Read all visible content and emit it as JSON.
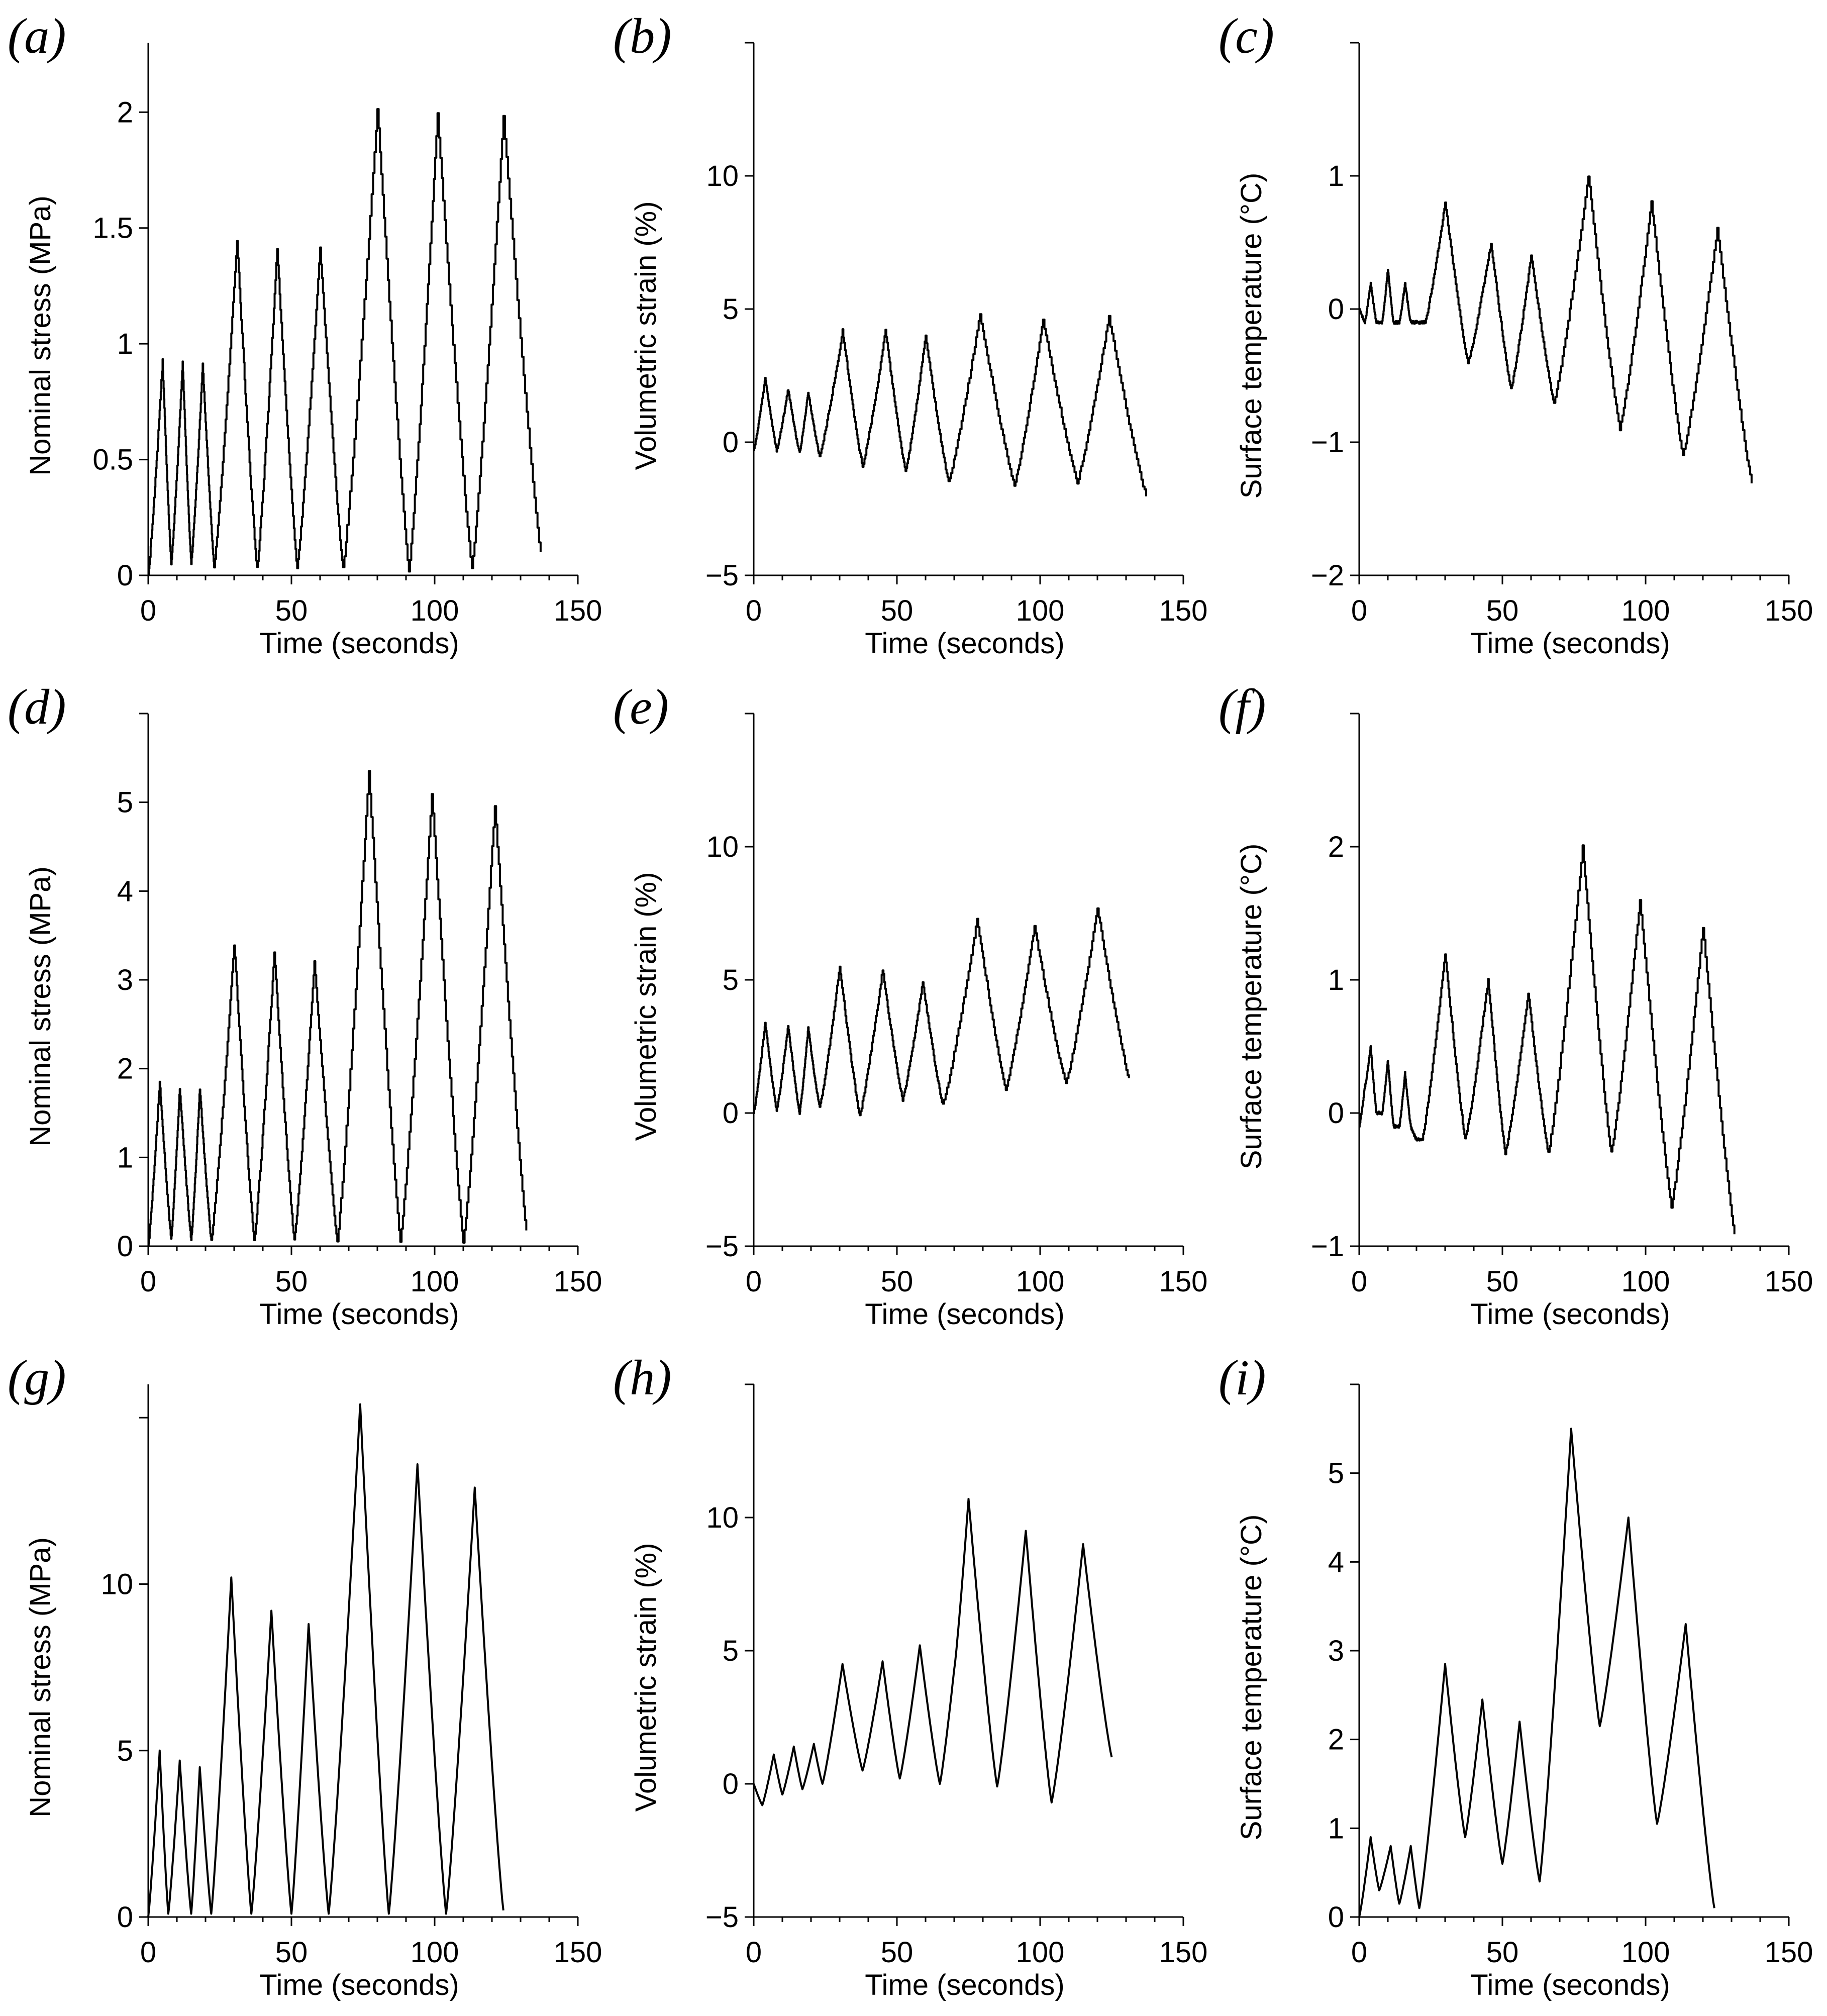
{
  "chart_data": [
    {
      "panel": "(a)",
      "type": "line",
      "xlabel": "Time (seconds)",
      "ylabel": "Nominal stress (MPa)",
      "xlim": [
        0,
        150
      ],
      "ylim": [
        0,
        2.3
      ],
      "xticks": [
        0,
        50,
        100,
        150
      ],
      "yticks": [
        0,
        0.5,
        1,
        1.5,
        2
      ],
      "ytick_labels": [
        "0",
        "0.5",
        "1",
        "1.5",
        "2"
      ],
      "steps": true,
      "x": [
        0,
        5,
        8,
        12,
        15,
        19,
        23,
        31,
        38,
        45,
        52,
        60,
        68,
        80,
        91,
        101,
        113,
        124,
        137
      ],
      "y": [
        0,
        0.93,
        0.05,
        0.92,
        0.05,
        0.91,
        0.04,
        1.44,
        0.03,
        1.41,
        0.03,
        1.41,
        0.03,
        2.02,
        0.02,
        1.99,
        0.03,
        1.98,
        0.1
      ]
    },
    {
      "panel": "(b)",
      "type": "line",
      "xlabel": "Time (seconds)",
      "ylabel": "Volumetric strain (%)",
      "xlim": [
        0,
        150
      ],
      "ylim": [
        -5,
        15
      ],
      "xticks": [
        0,
        50,
        100,
        150
      ],
      "yticks": [
        -5,
        0,
        5,
        10
      ],
      "ytick_labels": [
        "−5",
        "0",
        "5",
        "10"
      ],
      "steps": true,
      "x": [
        0,
        4,
        8,
        12,
        16,
        19,
        23,
        31,
        38,
        46,
        53,
        60,
        68,
        79,
        91,
        101,
        113,
        124,
        137
      ],
      "y": [
        -0.3,
        2.4,
        -0.3,
        2.0,
        -0.4,
        1.9,
        -0.5,
        4.2,
        -0.9,
        4.2,
        -1.1,
        4.0,
        -1.5,
        4.8,
        -1.6,
        4.6,
        -1.5,
        4.7,
        -2.0
      ]
    },
    {
      "panel": "(c)",
      "type": "line",
      "xlabel": "Time (seconds)",
      "ylabel": "Surface temperature (°C)",
      "xlim": [
        0,
        150
      ],
      "ylim": [
        -2,
        2
      ],
      "xticks": [
        0,
        50,
        100,
        150
      ],
      "yticks": [
        -2,
        -1,
        0,
        1
      ],
      "ytick_labels": [
        "−2",
        "−1",
        "0",
        "1"
      ],
      "steps": true,
      "x": [
        0,
        2,
        4,
        6,
        8,
        10,
        12,
        14,
        16,
        18,
        20,
        23,
        30,
        38,
        46,
        53,
        60,
        68,
        80,
        91,
        102,
        113,
        125,
        137
      ],
      "y": [
        0,
        -0.1,
        0.2,
        -0.1,
        -0.1,
        0.3,
        -0.1,
        -0.1,
        0.2,
        -0.1,
        -0.1,
        -0.1,
        0.8,
        -0.4,
        0.5,
        -0.6,
        0.4,
        -0.7,
        1.0,
        -0.9,
        0.8,
        -1.1,
        0.6,
        -1.3
      ]
    },
    {
      "panel": "(d)",
      "type": "line",
      "xlabel": "Time (seconds)",
      "ylabel": "Nominal stress (MPa)",
      "xlim": [
        0,
        150
      ],
      "ylim": [
        0,
        6
      ],
      "xticks": [
        0,
        50,
        100,
        150
      ],
      "yticks": [
        0,
        1,
        2,
        3,
        4,
        5
      ],
      "ytick_labels": [
        "0",
        "1",
        "2",
        "3",
        "4",
        "5"
      ],
      "steps": true,
      "x": [
        0,
        4,
        8,
        11,
        15,
        18,
        22,
        30,
        37,
        44,
        51,
        58,
        66,
        77,
        88,
        99,
        110,
        121,
        132
      ],
      "y": [
        0,
        1.85,
        0.08,
        1.78,
        0.07,
        1.78,
        0.06,
        3.4,
        0.07,
        3.3,
        0.06,
        3.2,
        0.06,
        5.35,
        0.06,
        5.1,
        0.05,
        4.97,
        0.18
      ]
    },
    {
      "panel": "(e)",
      "type": "line",
      "xlabel": "Time (seconds)",
      "ylabel": "Volumetric strain (%)",
      "xlim": [
        0,
        150
      ],
      "ylim": [
        -5,
        15
      ],
      "xticks": [
        0,
        50,
        100,
        150
      ],
      "yticks": [
        -5,
        0,
        5,
        10
      ],
      "ytick_labels": [
        "−5",
        "0",
        "5",
        "10"
      ],
      "steps": true,
      "x": [
        0,
        4,
        8,
        12,
        16,
        19,
        23,
        30,
        37,
        45,
        52,
        59,
        66,
        78,
        88,
        98,
        109,
        120,
        131
      ],
      "y": [
        0,
        3.4,
        0.1,
        3.3,
        0.0,
        3.2,
        0.2,
        5.5,
        -0.1,
        5.4,
        0.5,
        4.9,
        0.3,
        7.3,
        0.9,
        7.0,
        1.1,
        7.7,
        1.3
      ]
    },
    {
      "panel": "(f)",
      "type": "line",
      "xlabel": "Time (seconds)",
      "ylabel": "Surface temperature (°C)",
      "xlim": [
        0,
        150
      ],
      "ylim": [
        -1,
        3
      ],
      "xticks": [
        0,
        50,
        100,
        150
      ],
      "yticks": [
        -1,
        0,
        1,
        2
      ],
      "ytick_labels": [
        "−1",
        "0",
        "1",
        "2"
      ],
      "steps": true,
      "x": [
        0,
        2,
        4,
        6,
        8,
        10,
        12,
        14,
        16,
        18,
        20,
        22,
        30,
        37,
        45,
        51,
        59,
        66,
        78,
        88,
        98,
        109,
        120,
        131
      ],
      "y": [
        -0.1,
        0.2,
        0.5,
        0.0,
        0.0,
        0.4,
        -0.1,
        -0.1,
        0.3,
        -0.1,
        -0.2,
        -0.2,
        1.2,
        -0.2,
        1.0,
        -0.3,
        0.9,
        -0.3,
        2.0,
        -0.3,
        1.6,
        -0.7,
        1.4,
        -0.9
      ]
    },
    {
      "panel": "(g)",
      "type": "line",
      "xlabel": "Time (seconds)",
      "ylabel": "Nominal stress (MPa)",
      "xlim": [
        0,
        150
      ],
      "ylim": [
        0,
        16
      ],
      "xticks": [
        0,
        50,
        100,
        150
      ],
      "yticks": [
        0,
        5,
        10
      ],
      "ytick_labels": [
        "0",
        "5",
        "10"
      ],
      "steps": false,
      "x": [
        0,
        4,
        7,
        11,
        15,
        18,
        22,
        29,
        36,
        43,
        50,
        56,
        63,
        74,
        84,
        94,
        104,
        114,
        124
      ],
      "y": [
        0,
        5.0,
        0.1,
        4.7,
        0.1,
        4.5,
        0.1,
        10.2,
        0.1,
        9.2,
        0.1,
        8.8,
        0.1,
        15.4,
        0.1,
        13.6,
        0.1,
        12.9,
        0.2
      ]
    },
    {
      "panel": "(h)",
      "type": "line",
      "xlabel": "Time (seconds)",
      "ylabel": "Volumetric strain (%)",
      "xlim": [
        0,
        150
      ],
      "ylim": [
        -5,
        15
      ],
      "xticks": [
        0,
        50,
        100,
        150
      ],
      "yticks": [
        -5,
        0,
        5,
        10
      ],
      "ytick_labels": [
        "−5",
        "0",
        "5",
        "10"
      ],
      "steps": false,
      "x": [
        0,
        3,
        7,
        10,
        14,
        17,
        21,
        24,
        31,
        38,
        45,
        51,
        58,
        65,
        70,
        75,
        85,
        95,
        104,
        115,
        125
      ],
      "y": [
        0,
        -0.8,
        1.1,
        -0.4,
        1.4,
        -0.2,
        1.5,
        0.0,
        4.5,
        0.5,
        4.6,
        0.2,
        5.2,
        0.0,
        4.3,
        10.7,
        -0.1,
        9.5,
        -0.7,
        9.0,
        1.0
      ]
    },
    {
      "panel": "(i)",
      "type": "line",
      "xlabel": "Time (seconds)",
      "ylabel": "Surface temperature (°C)",
      "xlim": [
        0,
        150
      ],
      "ylim": [
        0,
        6
      ],
      "xticks": [
        0,
        50,
        100,
        150
      ],
      "yticks": [
        0,
        1,
        2,
        3,
        4,
        5
      ],
      "ytick_labels": [
        "0",
        "1",
        "2",
        "3",
        "4",
        "5"
      ],
      "steps": false,
      "x": [
        0,
        4,
        7,
        11,
        14,
        18,
        21,
        30,
        37,
        43,
        50,
        56,
        63,
        74,
        84,
        94,
        104,
        114,
        124
      ],
      "y": [
        0,
        0.9,
        0.3,
        0.8,
        0.15,
        0.8,
        0.1,
        2.85,
        0.9,
        2.45,
        0.6,
        2.2,
        0.4,
        5.5,
        2.15,
        4.5,
        1.05,
        3.3,
        0.1
      ]
    }
  ]
}
